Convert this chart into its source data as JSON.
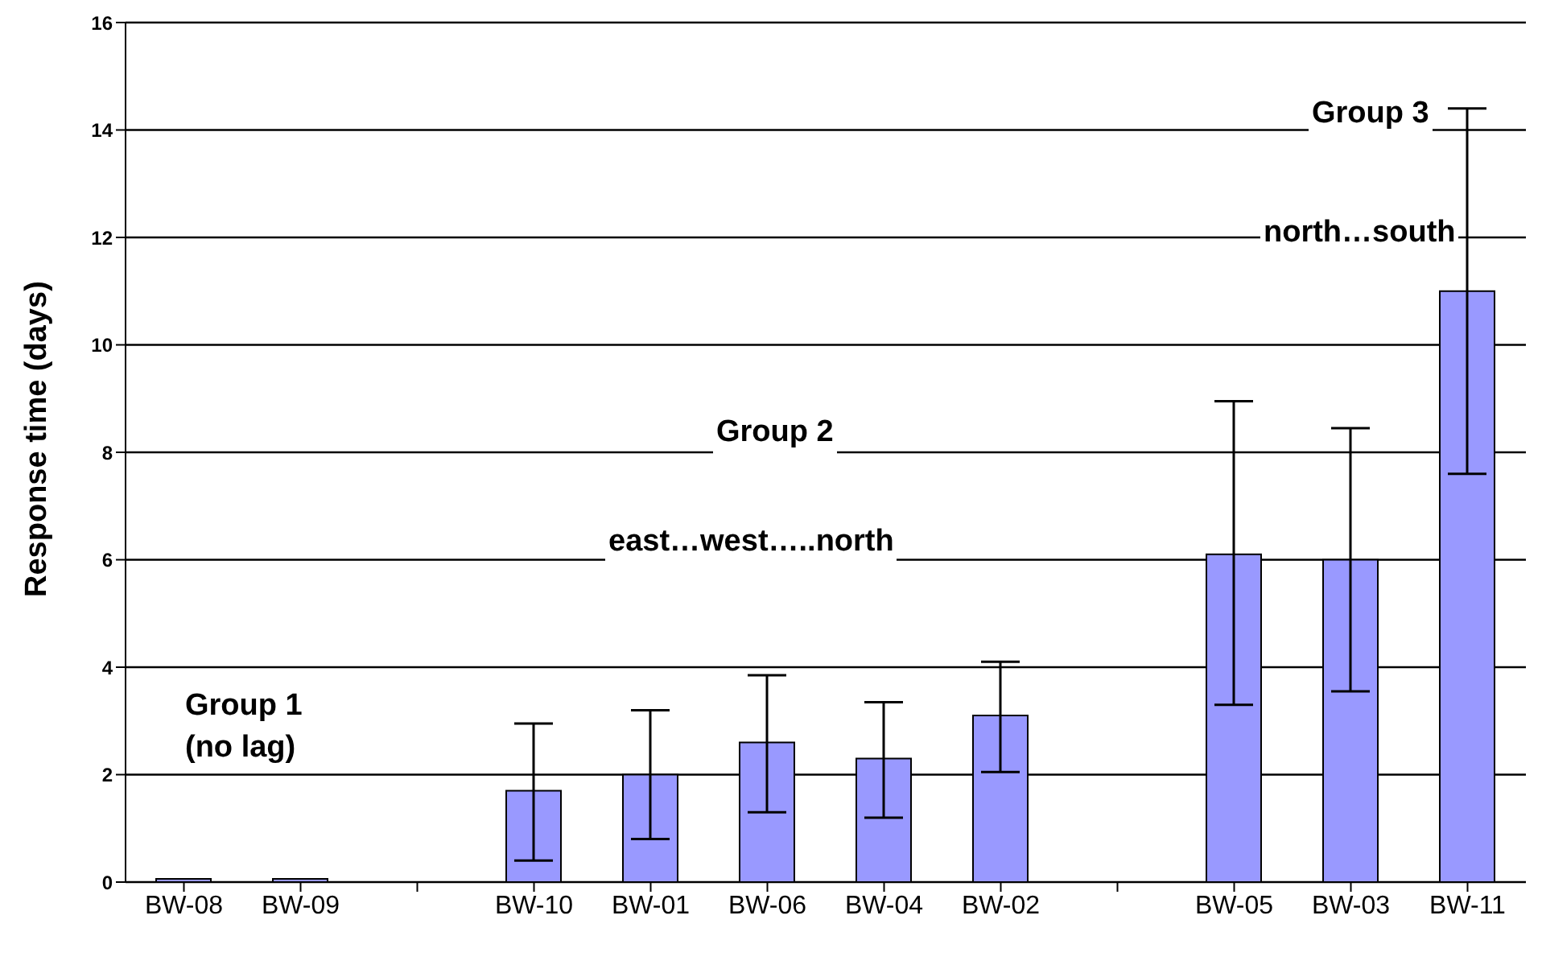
{
  "chart_data": {
    "type": "bar",
    "ylabel": "Response time (days)",
    "categories": [
      "BW-08",
      "BW-09",
      null,
      "BW-10",
      "BW-01",
      "BW-06",
      "BW-04",
      "BW-02",
      null,
      "BW-05",
      "BW-03",
      "BW-11"
    ],
    "values": [
      0,
      0,
      null,
      1.7,
      2.0,
      2.6,
      2.3,
      3.1,
      null,
      6.1,
      6.0,
      11.0
    ],
    "errors": [
      null,
      null,
      null,
      [
        0.4,
        2.95
      ],
      [
        0.8,
        3.2
      ],
      [
        1.3,
        3.85
      ],
      [
        1.2,
        3.35
      ],
      [
        2.05,
        4.1
      ],
      null,
      [
        3.3,
        8.95
      ],
      [
        3.55,
        8.45
      ],
      [
        7.6,
        14.4
      ]
    ],
    "color": "#9999ff",
    "ylim": [
      0,
      16
    ],
    "yticks": [
      0,
      2,
      4,
      6,
      8,
      10,
      12,
      14,
      16
    ],
    "grid": "y",
    "annotations": [
      "Group 1\n(no lag)",
      "Group 2",
      "east…west…..north",
      "Group 3",
      "north…south"
    ]
  }
}
